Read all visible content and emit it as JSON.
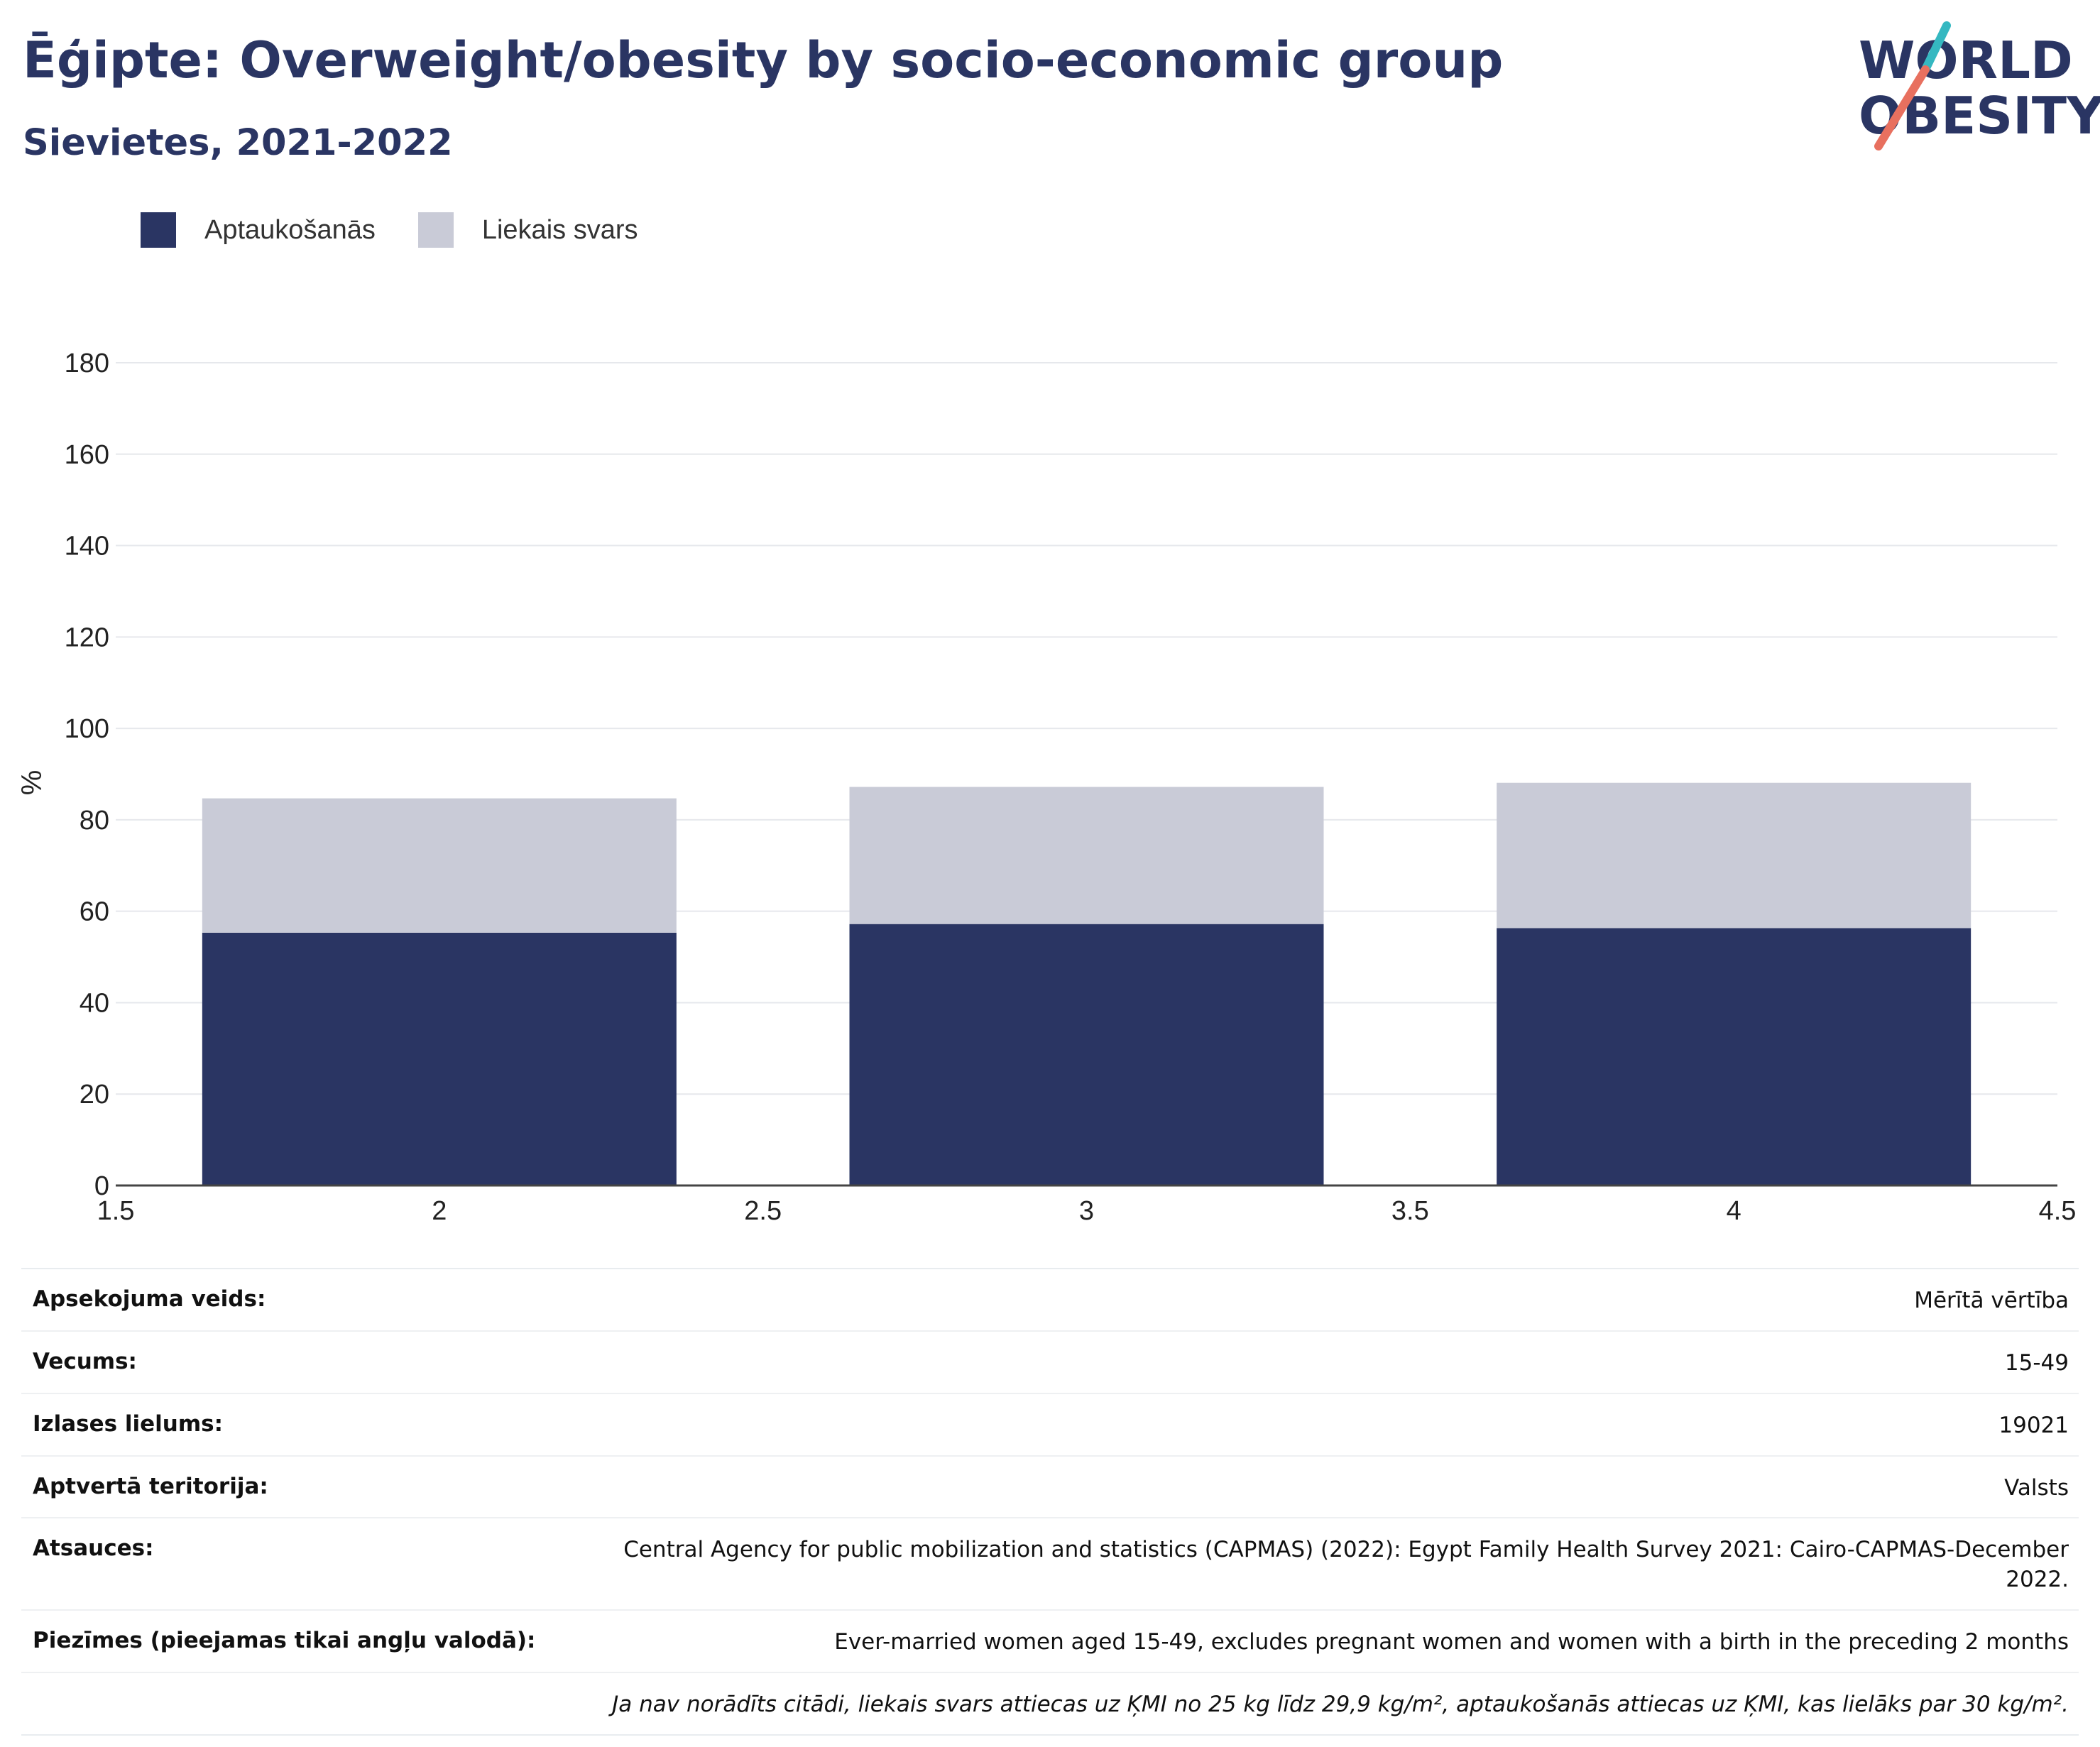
{
  "header": {
    "title": "Ēģipte: Overweight/obesity by socio-economic group",
    "subtitle": "Sievietes, 2021-2022"
  },
  "logo": {
    "line1": "WORLD",
    "line2": "OBESITY",
    "colors": {
      "text": "#2a3563",
      "slash_top": "#35b8c1",
      "slash_bottom": "#e8705f"
    }
  },
  "legend": {
    "items": [
      {
        "label": "Aptaukošanās",
        "color": "#2a3563"
      },
      {
        "label": "Liekais svars",
        "color": "#c9cbd7"
      }
    ]
  },
  "chart_data": {
    "type": "bar",
    "stacked": true,
    "x": [
      2,
      3,
      4
    ],
    "series": [
      {
        "name": "Aptaukošanās",
        "color": "#2a3563",
        "values": [
          55.3,
          57.2,
          56.3
        ]
      },
      {
        "name": "Liekais svars",
        "color": "#c9cbd7",
        "values": [
          29.4,
          30.0,
          31.8
        ]
      }
    ],
    "ylabel": "%",
    "xlim": [
      1.5,
      4.5
    ],
    "ylim": [
      0,
      180
    ],
    "xticks": [
      "1.5",
      "2",
      "2.5",
      "3",
      "3.5",
      "4",
      "4.5"
    ],
    "yticks": [
      "0",
      "20",
      "40",
      "60",
      "80",
      "100",
      "120",
      "140",
      "160",
      "180"
    ],
    "grid": true,
    "legend_position": "top-left"
  },
  "info": {
    "rows": [
      {
        "label": "Apsekojuma veids:",
        "value": "Mērītā vērtība"
      },
      {
        "label": "Vecums:",
        "value": "15-49"
      },
      {
        "label": "Izlases lielums:",
        "value": "19021"
      },
      {
        "label": "Aptvertā teritorija:",
        "value": "Valsts"
      },
      {
        "label": "Atsauces:",
        "value": "Central Agency for public mobilization and statistics (CAPMAS) (2022): Egypt Family Health Survey 2021: Cairo-CAPMAS-December 2022."
      },
      {
        "label": "Piezīmes (pieejamas tikai angļu valodā):",
        "value": "Ever-married women aged 15-49, excludes pregnant women and women with a birth in the preceding 2 months"
      }
    ],
    "footnote": "Ja nav norādīts citādi, liekais svars attiecas uz ĶMI no 25 kg līdz 29,9 kg/m², aptaukošanās attiecas uz ĶMI, kas lielāks par 30 kg/m²."
  }
}
